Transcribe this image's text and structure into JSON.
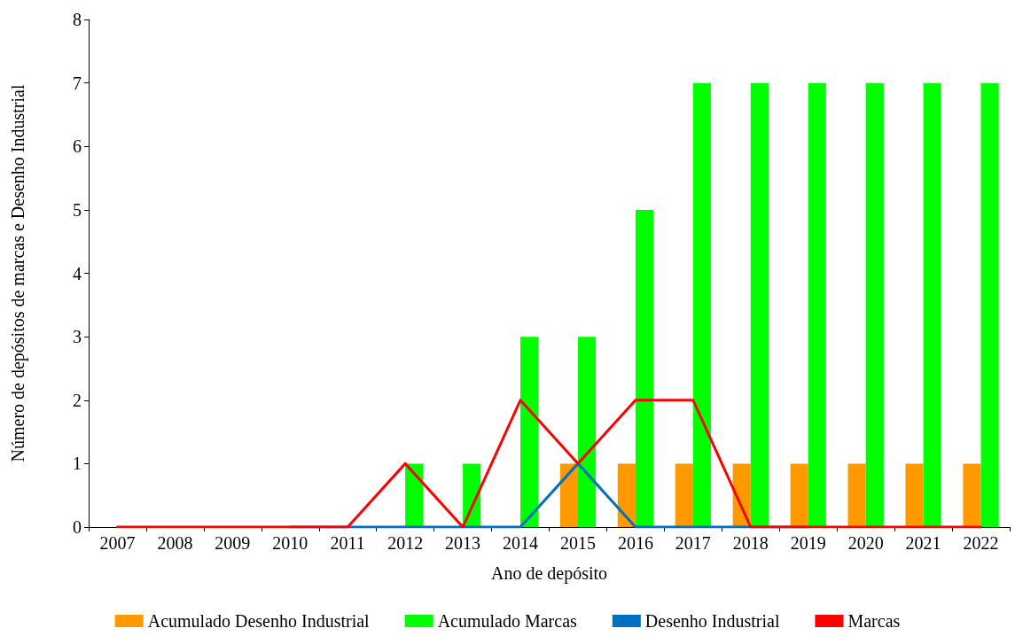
{
  "chart_data": {
    "type": "bar",
    "xlabel": "Ano de depósito",
    "ylabel": "Número de depósitos de marcas e Desenho Industrial",
    "categories": [
      "2007",
      "2008",
      "2009",
      "2010",
      "2011",
      "2012",
      "2013",
      "2014",
      "2015",
      "2016",
      "2017",
      "2018",
      "2019",
      "2020",
      "2021",
      "2022"
    ],
    "series": [
      {
        "name": "Acumulado Desenho Industrial",
        "color": "#ff9900",
        "values": [
          0,
          0,
          0,
          0,
          0,
          0,
          0,
          0,
          1,
          1,
          1,
          1,
          1,
          1,
          1,
          1
        ]
      },
      {
        "name": "Acumulado Marcas",
        "color": "#00ff00",
        "values": [
          0,
          0,
          0,
          0,
          0,
          1,
          1,
          3,
          3,
          5,
          7,
          7,
          7,
          7,
          7,
          7
        ]
      },
      {
        "name": "Desenho Industrial",
        "type": "line",
        "color": "#0070c0",
        "values": [
          null,
          null,
          null,
          0,
          0,
          0,
          0,
          0,
          1,
          0,
          0,
          0,
          0,
          null,
          null,
          null
        ]
      },
      {
        "name": "Marcas",
        "type": "line",
        "color": "#ff0000",
        "values": [
          0,
          0,
          0,
          0,
          0,
          1,
          0,
          2,
          1,
          2,
          2,
          0,
          0,
          0,
          0,
          0
        ]
      }
    ],
    "ylim": [
      0,
      8
    ],
    "yticks": [
      0,
      1,
      2,
      3,
      4,
      5,
      6,
      7,
      8
    ],
    "grid": false,
    "legend": "bottom",
    "marker": "none",
    "line_style": "solid"
  }
}
